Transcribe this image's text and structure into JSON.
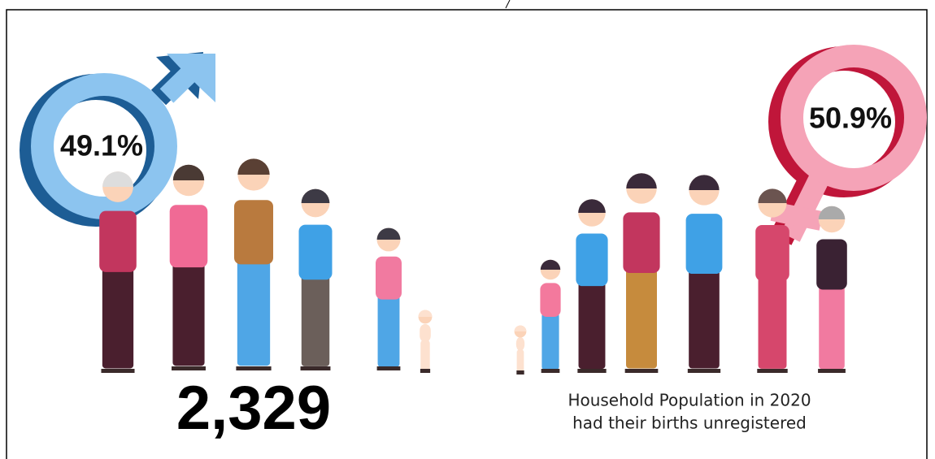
{
  "male": {
    "percent": "49.1%"
  },
  "female": {
    "percent": "50.9%"
  },
  "count": "2,329",
  "caption": [
    "Household Population in 2020",
    "had their births unregistered"
  ]
}
